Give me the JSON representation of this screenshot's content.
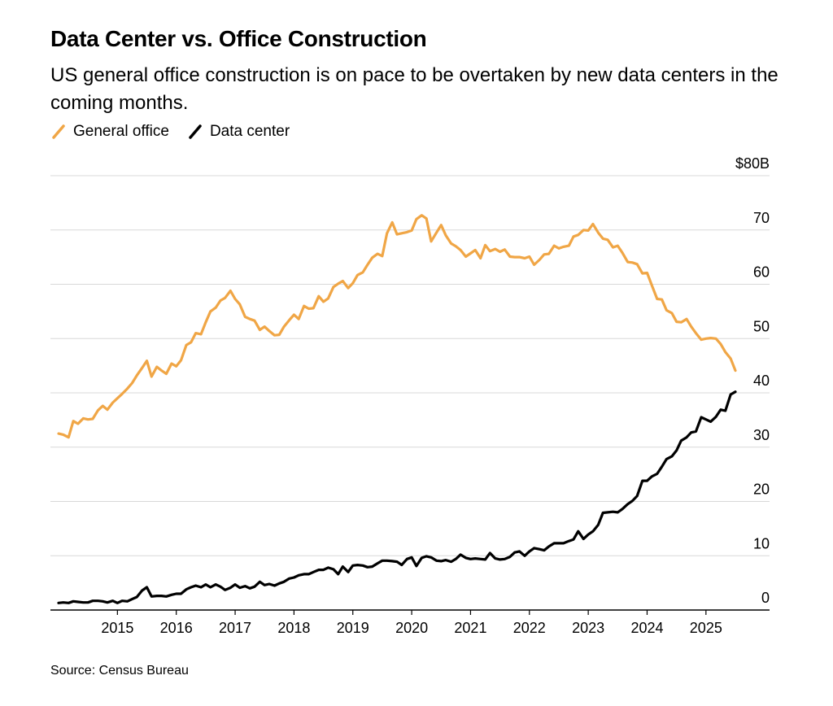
{
  "title": "Data Center vs. Office Construction",
  "subtitle": "US general office construction is on pace to be overtaken by new data centers in the coming months.",
  "source": "Source: Census Bureau",
  "colors": {
    "office": "#F0A646",
    "datacenter": "#000000",
    "grid": "#D8D8D8",
    "axis": "#000000"
  },
  "legend": [
    {
      "label": "General office",
      "color": "#F0A646"
    },
    {
      "label": "Data center",
      "color": "#000000"
    }
  ],
  "chart_data": {
    "type": "line",
    "title": "Data Center vs. Office Construction",
    "xlabel": "",
    "ylabel": "",
    "xlim": [
      2014.0,
      2025.5
    ],
    "ylim": [
      0,
      80
    ],
    "x_ticks": [
      2015,
      2016,
      2017,
      2018,
      2019,
      2020,
      2021,
      2022,
      2023,
      2024,
      2025
    ],
    "x_tick_labels": [
      "2015",
      "2016",
      "2017",
      "2018",
      "2019",
      "2020",
      "2021",
      "2022",
      "2023",
      "2024",
      "2025"
    ],
    "y_ticks": [
      0,
      10,
      20,
      30,
      40,
      50,
      60,
      70,
      80
    ],
    "y_tick_labels": [
      "0",
      "10",
      "20",
      "30",
      "40",
      "50",
      "60",
      "70",
      "$80B"
    ],
    "series": [
      {
        "name": "General office",
        "color": "#F0A646",
        "points": [
          [
            2014.0,
            32.5
          ],
          [
            2014.08,
            32.3
          ],
          [
            2014.17,
            31.8
          ],
          [
            2014.25,
            34.8
          ],
          [
            2014.33,
            34.3
          ],
          [
            2014.42,
            35.3
          ],
          [
            2014.5,
            35.1
          ],
          [
            2014.58,
            35.2
          ],
          [
            2014.67,
            36.8
          ],
          [
            2014.75,
            37.6
          ],
          [
            2014.83,
            36.9
          ],
          [
            2014.92,
            38.2
          ],
          [
            2015.0,
            39.0
          ],
          [
            2015.08,
            39.8
          ],
          [
            2015.17,
            40.8
          ],
          [
            2015.25,
            41.8
          ],
          [
            2015.33,
            43.2
          ],
          [
            2015.42,
            44.6
          ],
          [
            2015.5,
            45.9
          ],
          [
            2015.58,
            43.0
          ],
          [
            2015.67,
            44.8
          ],
          [
            2015.75,
            44.1
          ],
          [
            2015.83,
            43.5
          ],
          [
            2015.92,
            45.4
          ],
          [
            2016.0,
            44.9
          ],
          [
            2016.08,
            46.0
          ],
          [
            2016.17,
            48.8
          ],
          [
            2016.25,
            49.3
          ],
          [
            2016.33,
            51.0
          ],
          [
            2016.42,
            50.8
          ],
          [
            2016.5,
            53.0
          ],
          [
            2016.58,
            55.0
          ],
          [
            2016.67,
            55.7
          ],
          [
            2016.75,
            57.0
          ],
          [
            2016.83,
            57.5
          ],
          [
            2016.92,
            58.8
          ],
          [
            2017.0,
            57.3
          ],
          [
            2017.08,
            56.3
          ],
          [
            2017.17,
            54.0
          ],
          [
            2017.25,
            53.6
          ],
          [
            2017.33,
            53.3
          ],
          [
            2017.42,
            51.6
          ],
          [
            2017.5,
            52.2
          ],
          [
            2017.58,
            51.4
          ],
          [
            2017.67,
            50.6
          ],
          [
            2017.75,
            50.7
          ],
          [
            2017.83,
            52.2
          ],
          [
            2017.92,
            53.4
          ],
          [
            2018.0,
            54.4
          ],
          [
            2018.08,
            53.6
          ],
          [
            2018.17,
            56.0
          ],
          [
            2018.25,
            55.5
          ],
          [
            2018.33,
            55.6
          ],
          [
            2018.42,
            57.8
          ],
          [
            2018.5,
            56.8
          ],
          [
            2018.58,
            57.4
          ],
          [
            2018.67,
            59.5
          ],
          [
            2018.75,
            60.1
          ],
          [
            2018.83,
            60.6
          ],
          [
            2018.92,
            59.3
          ],
          [
            2019.0,
            60.2
          ],
          [
            2019.08,
            61.7
          ],
          [
            2019.17,
            62.2
          ],
          [
            2019.25,
            63.6
          ],
          [
            2019.33,
            64.9
          ],
          [
            2019.42,
            65.6
          ],
          [
            2019.5,
            65.2
          ],
          [
            2019.58,
            69.4
          ],
          [
            2019.67,
            71.4
          ],
          [
            2019.75,
            69.2
          ],
          [
            2019.83,
            69.4
          ],
          [
            2019.92,
            69.6
          ],
          [
            2020.0,
            69.9
          ],
          [
            2020.08,
            72.0
          ],
          [
            2020.17,
            72.7
          ],
          [
            2020.25,
            72.1
          ],
          [
            2020.33,
            67.9
          ],
          [
            2020.42,
            69.5
          ],
          [
            2020.5,
            70.9
          ],
          [
            2020.58,
            69.0
          ],
          [
            2020.67,
            67.5
          ],
          [
            2020.75,
            67.0
          ],
          [
            2020.83,
            66.3
          ],
          [
            2020.92,
            65.1
          ],
          [
            2021.0,
            65.7
          ],
          [
            2021.08,
            66.3
          ],
          [
            2021.17,
            64.8
          ],
          [
            2021.25,
            67.2
          ],
          [
            2021.33,
            66.1
          ],
          [
            2021.42,
            66.5
          ],
          [
            2021.5,
            66.0
          ],
          [
            2021.58,
            66.4
          ],
          [
            2021.67,
            65.1
          ],
          [
            2021.75,
            65.0
          ],
          [
            2021.83,
            65.0
          ],
          [
            2021.92,
            64.8
          ],
          [
            2022.0,
            65.1
          ],
          [
            2022.08,
            63.6
          ],
          [
            2022.17,
            64.5
          ],
          [
            2022.25,
            65.5
          ],
          [
            2022.33,
            65.6
          ],
          [
            2022.42,
            67.1
          ],
          [
            2022.5,
            66.6
          ],
          [
            2022.58,
            66.9
          ],
          [
            2022.67,
            67.1
          ],
          [
            2022.75,
            68.8
          ],
          [
            2022.83,
            69.1
          ],
          [
            2022.92,
            70.0
          ],
          [
            2023.0,
            69.9
          ],
          [
            2023.08,
            71.1
          ],
          [
            2023.17,
            69.5
          ],
          [
            2023.25,
            68.4
          ],
          [
            2023.33,
            68.2
          ],
          [
            2023.42,
            66.8
          ],
          [
            2023.5,
            67.1
          ],
          [
            2023.58,
            65.8
          ],
          [
            2023.67,
            64.1
          ],
          [
            2023.75,
            64.0
          ],
          [
            2023.83,
            63.7
          ],
          [
            2023.92,
            62.0
          ],
          [
            2024.0,
            62.1
          ],
          [
            2024.08,
            59.8
          ],
          [
            2024.17,
            57.3
          ],
          [
            2024.25,
            57.2
          ],
          [
            2024.33,
            55.2
          ],
          [
            2024.42,
            54.7
          ],
          [
            2024.5,
            53.1
          ],
          [
            2024.58,
            53.0
          ],
          [
            2024.67,
            53.6
          ],
          [
            2024.75,
            52.2
          ],
          [
            2024.83,
            51.0
          ],
          [
            2024.92,
            49.8
          ],
          [
            2025.0,
            50.0
          ],
          [
            2025.08,
            50.1
          ],
          [
            2025.17,
            50.0
          ],
          [
            2025.25,
            49.0
          ],
          [
            2025.33,
            47.5
          ],
          [
            2025.42,
            46.3
          ],
          [
            2025.5,
            44.1
          ]
        ]
      },
      {
        "name": "Data center",
        "color": "#000000",
        "points": [
          [
            2014.0,
            1.3
          ],
          [
            2014.08,
            1.4
          ],
          [
            2014.17,
            1.3
          ],
          [
            2014.25,
            1.6
          ],
          [
            2014.33,
            1.5
          ],
          [
            2014.42,
            1.4
          ],
          [
            2014.5,
            1.4
          ],
          [
            2014.58,
            1.7
          ],
          [
            2014.67,
            1.7
          ],
          [
            2014.75,
            1.6
          ],
          [
            2014.83,
            1.4
          ],
          [
            2014.92,
            1.7
          ],
          [
            2015.0,
            1.3
          ],
          [
            2015.08,
            1.7
          ],
          [
            2015.17,
            1.6
          ],
          [
            2015.25,
            2.0
          ],
          [
            2015.33,
            2.4
          ],
          [
            2015.42,
            3.6
          ],
          [
            2015.5,
            4.2
          ],
          [
            2015.58,
            2.5
          ],
          [
            2015.67,
            2.6
          ],
          [
            2015.75,
            2.6
          ],
          [
            2015.83,
            2.5
          ],
          [
            2015.92,
            2.8
          ],
          [
            2016.0,
            3.0
          ],
          [
            2016.08,
            3.0
          ],
          [
            2016.17,
            3.8
          ],
          [
            2016.25,
            4.2
          ],
          [
            2016.33,
            4.5
          ],
          [
            2016.42,
            4.2
          ],
          [
            2016.5,
            4.7
          ],
          [
            2016.58,
            4.2
          ],
          [
            2016.67,
            4.7
          ],
          [
            2016.75,
            4.3
          ],
          [
            2016.83,
            3.7
          ],
          [
            2016.92,
            4.1
          ],
          [
            2017.0,
            4.7
          ],
          [
            2017.08,
            4.1
          ],
          [
            2017.17,
            4.4
          ],
          [
            2017.25,
            4.0
          ],
          [
            2017.33,
            4.3
          ],
          [
            2017.42,
            5.2
          ],
          [
            2017.5,
            4.6
          ],
          [
            2017.58,
            4.8
          ],
          [
            2017.67,
            4.5
          ],
          [
            2017.75,
            4.9
          ],
          [
            2017.83,
            5.2
          ],
          [
            2017.92,
            5.8
          ],
          [
            2018.0,
            6.0
          ],
          [
            2018.08,
            6.4
          ],
          [
            2018.17,
            6.6
          ],
          [
            2018.25,
            6.6
          ],
          [
            2018.33,
            7.0
          ],
          [
            2018.42,
            7.4
          ],
          [
            2018.5,
            7.4
          ],
          [
            2018.58,
            7.8
          ],
          [
            2018.67,
            7.5
          ],
          [
            2018.75,
            6.6
          ],
          [
            2018.83,
            8.0
          ],
          [
            2018.92,
            7.0
          ],
          [
            2019.0,
            8.2
          ],
          [
            2019.08,
            8.3
          ],
          [
            2019.17,
            8.2
          ],
          [
            2019.25,
            7.9
          ],
          [
            2019.33,
            8.0
          ],
          [
            2019.42,
            8.6
          ],
          [
            2019.5,
            9.1
          ],
          [
            2019.58,
            9.1
          ],
          [
            2019.67,
            9.0
          ],
          [
            2019.75,
            8.9
          ],
          [
            2019.83,
            8.3
          ],
          [
            2019.92,
            9.4
          ],
          [
            2020.0,
            9.7
          ],
          [
            2020.08,
            8.1
          ],
          [
            2020.17,
            9.6
          ],
          [
            2020.25,
            9.9
          ],
          [
            2020.33,
            9.7
          ],
          [
            2020.42,
            9.1
          ],
          [
            2020.5,
            9.0
          ],
          [
            2020.58,
            9.2
          ],
          [
            2020.67,
            8.9
          ],
          [
            2020.75,
            9.4
          ],
          [
            2020.83,
            10.2
          ],
          [
            2020.92,
            9.6
          ],
          [
            2021.0,
            9.4
          ],
          [
            2021.08,
            9.5
          ],
          [
            2021.17,
            9.4
          ],
          [
            2021.25,
            9.3
          ],
          [
            2021.33,
            10.5
          ],
          [
            2021.42,
            9.5
          ],
          [
            2021.5,
            9.3
          ],
          [
            2021.58,
            9.4
          ],
          [
            2021.67,
            9.8
          ],
          [
            2021.75,
            10.6
          ],
          [
            2021.83,
            10.8
          ],
          [
            2021.92,
            10.0
          ],
          [
            2022.0,
            10.8
          ],
          [
            2022.08,
            11.4
          ],
          [
            2022.17,
            11.2
          ],
          [
            2022.25,
            11.0
          ],
          [
            2022.33,
            11.7
          ],
          [
            2022.42,
            12.3
          ],
          [
            2022.5,
            12.3
          ],
          [
            2022.58,
            12.3
          ],
          [
            2022.67,
            12.7
          ],
          [
            2022.75,
            13.0
          ],
          [
            2022.83,
            14.5
          ],
          [
            2022.92,
            13.1
          ],
          [
            2023.0,
            13.9
          ],
          [
            2023.08,
            14.5
          ],
          [
            2023.17,
            15.7
          ],
          [
            2023.25,
            17.9
          ],
          [
            2023.33,
            18.0
          ],
          [
            2023.42,
            18.1
          ],
          [
            2023.5,
            18.0
          ],
          [
            2023.58,
            18.6
          ],
          [
            2023.67,
            19.5
          ],
          [
            2023.75,
            20.1
          ],
          [
            2023.83,
            21.0
          ],
          [
            2023.92,
            23.8
          ],
          [
            2024.0,
            23.8
          ],
          [
            2024.08,
            24.6
          ],
          [
            2024.17,
            25.1
          ],
          [
            2024.25,
            26.4
          ],
          [
            2024.33,
            27.8
          ],
          [
            2024.42,
            28.3
          ],
          [
            2024.5,
            29.4
          ],
          [
            2024.58,
            31.2
          ],
          [
            2024.67,
            31.8
          ],
          [
            2024.75,
            32.7
          ],
          [
            2024.83,
            32.9
          ],
          [
            2024.92,
            35.5
          ],
          [
            2025.0,
            35.1
          ],
          [
            2025.08,
            34.7
          ],
          [
            2025.17,
            35.6
          ],
          [
            2025.25,
            36.9
          ],
          [
            2025.33,
            36.7
          ],
          [
            2025.42,
            39.7
          ],
          [
            2025.5,
            40.2
          ]
        ]
      }
    ]
  }
}
